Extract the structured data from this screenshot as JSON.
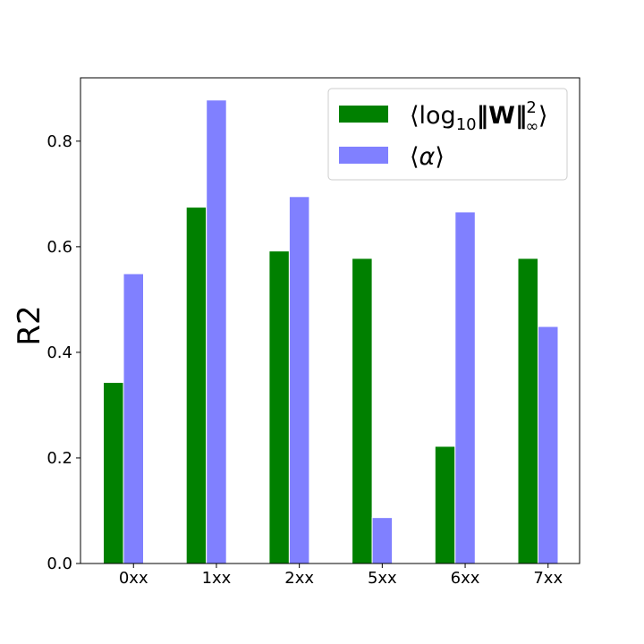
{
  "chart_data": {
    "type": "bar",
    "categories": [
      "0xx",
      "1xx",
      "2xx",
      "5xx",
      "6xx",
      "7xx"
    ],
    "series": [
      {
        "name": "⟨log10‖W‖²∞⟩",
        "values": [
          0.343,
          0.675,
          0.592,
          0.578,
          0.222,
          0.578
        ],
        "color": "#008000"
      },
      {
        "name": "⟨α⟩",
        "values": [
          0.549,
          0.878,
          0.695,
          0.087,
          0.666,
          0.449
        ],
        "color": "#8080ff"
      }
    ],
    "title": "",
    "xlabel": "",
    "ylabel": "R2",
    "ylim": [
      0,
      0.92
    ],
    "yticks": [
      "0.0",
      "0.2",
      "0.4",
      "0.6",
      "0.8"
    ],
    "grid": false,
    "legend_position": "top-right"
  }
}
